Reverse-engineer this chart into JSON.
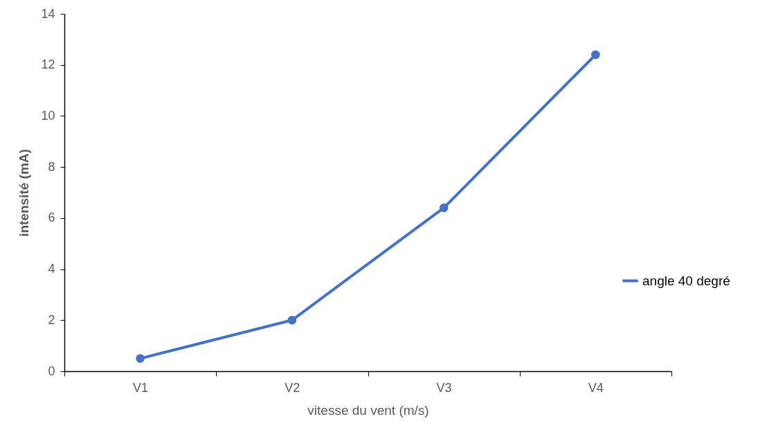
{
  "chart_data": {
    "type": "line",
    "xlabel": "vitesse du vent (m/s)",
    "ylabel": "intensité (mA)",
    "categories": [
      "V1",
      "V2",
      "V3",
      "V4"
    ],
    "series": [
      {
        "name": "angle 40 degré",
        "color": "#4472c4",
        "values": [
          0.5,
          2.0,
          6.4,
          12.4
        ]
      }
    ],
    "ylim": [
      0,
      14
    ],
    "yticks": [
      0,
      2,
      4,
      6,
      8,
      10,
      12,
      14
    ],
    "grid": false,
    "legend": "right",
    "marker": "circle",
    "line_style": "solid"
  }
}
